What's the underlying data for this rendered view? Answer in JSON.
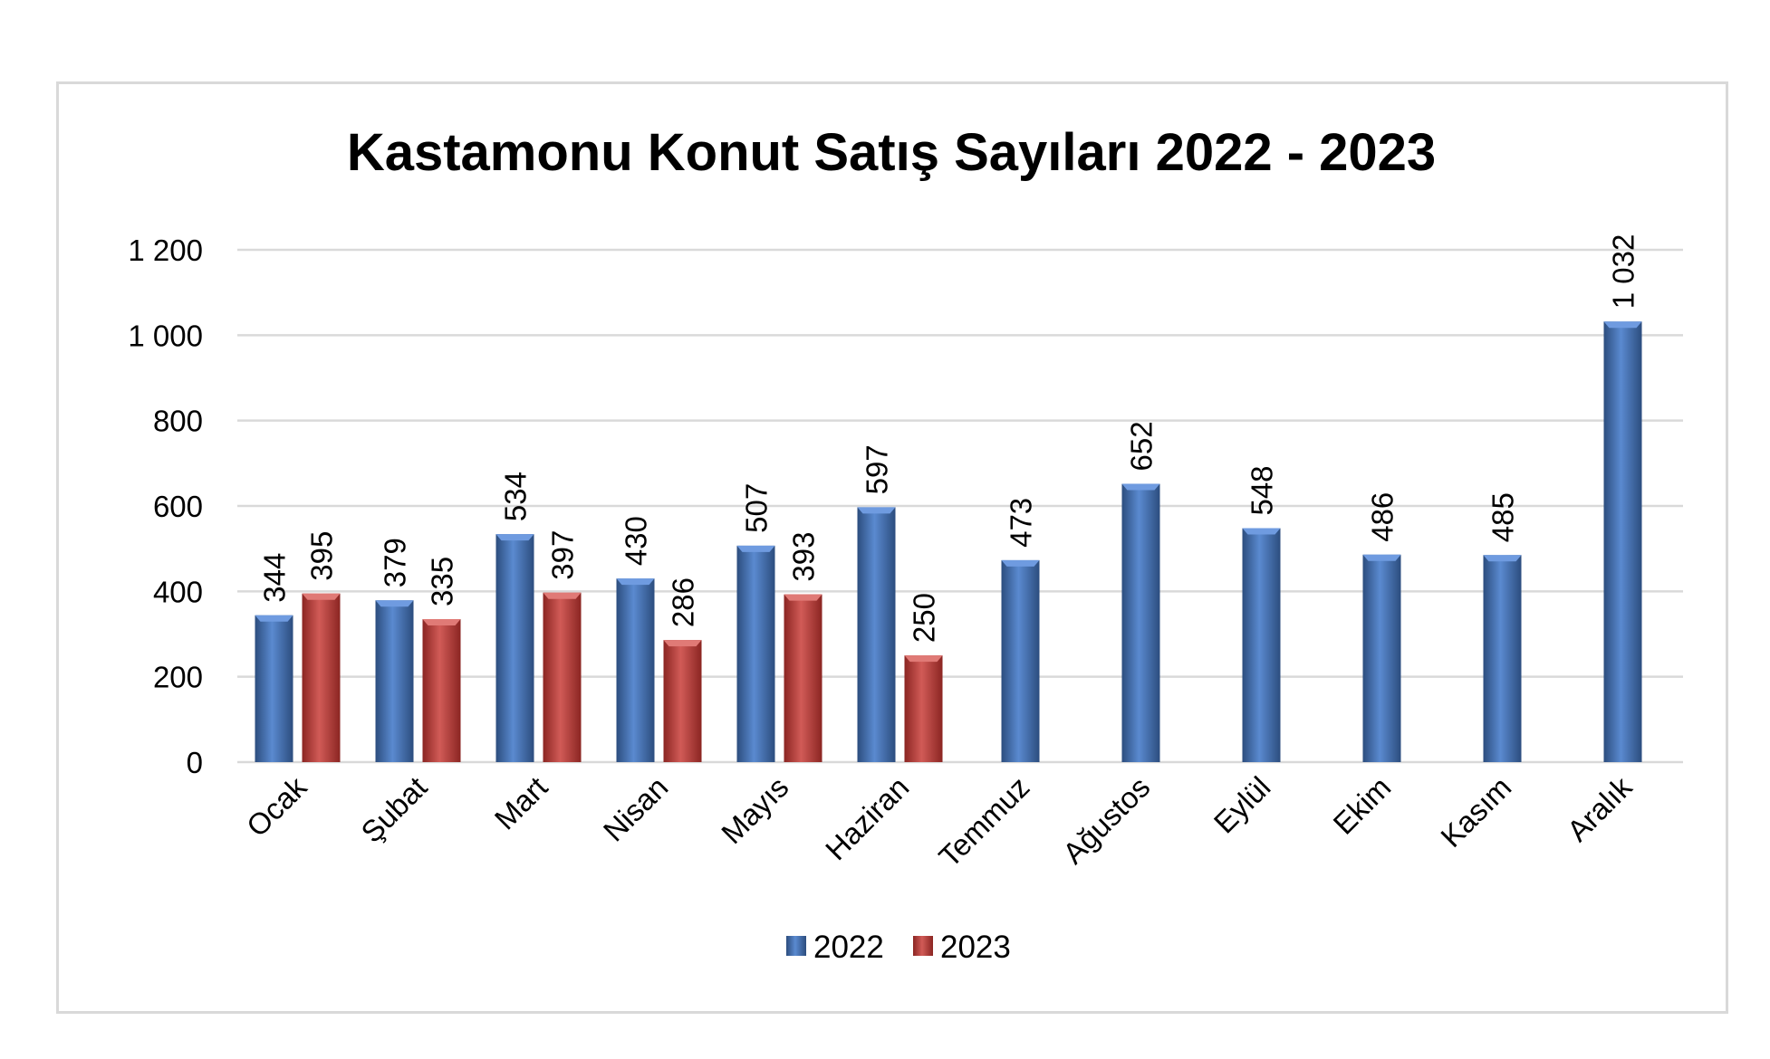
{
  "chart_data": {
    "type": "bar",
    "title": "Kastamonu Konut Satış Sayıları 2022 - 2023",
    "categories": [
      "Ocak",
      "Şubat",
      "Mart",
      "Nisan",
      "Mayıs",
      "Haziran",
      "Temmuz",
      "Ağustos",
      "Eylül",
      "Ekim",
      "Kasım",
      "Aralık"
    ],
    "series": [
      {
        "name": "2022",
        "color": "#4f81bd",
        "values": [
          344,
          379,
          534,
          430,
          507,
          597,
          473,
          652,
          548,
          486,
          485,
          1032
        ],
        "labels": [
          "344",
          "379",
          "534",
          "430",
          "507",
          "597",
          "473",
          "652",
          "548",
          "486",
          "485",
          "1 032"
        ]
      },
      {
        "name": "2023",
        "color": "#c0504d",
        "values": [
          395,
          335,
          397,
          286,
          393,
          250,
          null,
          null,
          null,
          null,
          null,
          null
        ],
        "labels": [
          "395",
          "335",
          "397",
          "286",
          "393",
          "250",
          "",
          "",
          "",
          "",
          "",
          ""
        ]
      }
    ],
    "ylim": [
      0,
      1200
    ],
    "yticks": [
      0,
      200,
      400,
      600,
      800,
      1000,
      1200
    ],
    "ytick_labels": [
      "0",
      "200",
      "400",
      "600",
      "800",
      "1 000",
      "1 200"
    ],
    "grid": true,
    "legend_position": "bottom"
  }
}
